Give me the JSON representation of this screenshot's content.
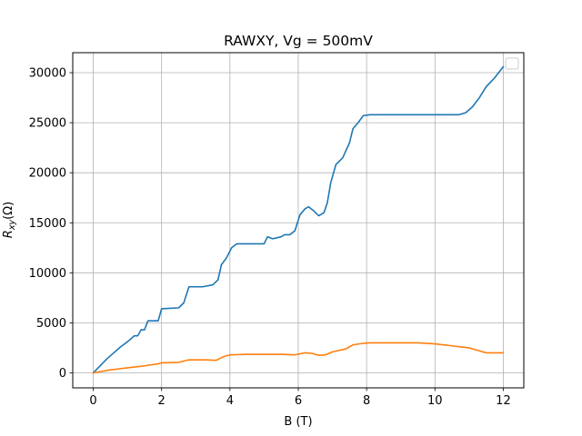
{
  "chart_data": {
    "type": "line",
    "title": "RAWXY, Vg = 500mV",
    "xlabel": "B (T)",
    "ylabel": {
      "main": "R",
      "sub": "xy",
      "unit": "(Ω)"
    },
    "xlim": [
      -0.6,
      12.6
    ],
    "ylim": [
      -1500,
      32000
    ],
    "x_ticks": [
      0,
      2,
      4,
      6,
      8,
      10,
      12
    ],
    "y_ticks": [
      0,
      5000,
      10000,
      15000,
      20000,
      25000,
      30000
    ],
    "grid": true,
    "legend": {
      "placement": "top-right",
      "entries": []
    },
    "series": [
      {
        "color": "#1f77b4",
        "points": [
          [
            0,
            0
          ],
          [
            0.2,
            700
          ],
          [
            0.4,
            1400
          ],
          [
            0.6,
            2000
          ],
          [
            0.8,
            2600
          ],
          [
            1.0,
            3100
          ],
          [
            1.2,
            3700
          ],
          [
            1.3,
            3700
          ],
          [
            1.4,
            4300
          ],
          [
            1.5,
            4300
          ],
          [
            1.6,
            5200
          ],
          [
            1.9,
            5200
          ],
          [
            2.0,
            6400
          ],
          [
            2.5,
            6500
          ],
          [
            2.65,
            7000
          ],
          [
            2.8,
            8600
          ],
          [
            3.2,
            8600
          ],
          [
            3.5,
            8800
          ],
          [
            3.65,
            9300
          ],
          [
            3.75,
            10800
          ],
          [
            3.9,
            11500
          ],
          [
            4.05,
            12500
          ],
          [
            4.2,
            12900
          ],
          [
            5.0,
            12900
          ],
          [
            5.1,
            13600
          ],
          [
            5.25,
            13400
          ],
          [
            5.5,
            13600
          ],
          [
            5.6,
            13800
          ],
          [
            5.75,
            13800
          ],
          [
            5.9,
            14200
          ],
          [
            6.05,
            15800
          ],
          [
            6.2,
            16400
          ],
          [
            6.3,
            16600
          ],
          [
            6.45,
            16200
          ],
          [
            6.6,
            15700
          ],
          [
            6.75,
            16000
          ],
          [
            6.85,
            17000
          ],
          [
            6.95,
            19000
          ],
          [
            7.1,
            20800
          ],
          [
            7.3,
            21500
          ],
          [
            7.5,
            23000
          ],
          [
            7.6,
            24400
          ],
          [
            7.75,
            25000
          ],
          [
            7.9,
            25700
          ],
          [
            8.1,
            25800
          ],
          [
            10.7,
            25800
          ],
          [
            10.9,
            26000
          ],
          [
            11.1,
            26600
          ],
          [
            11.3,
            27500
          ],
          [
            11.5,
            28600
          ],
          [
            11.75,
            29500
          ],
          [
            12.0,
            30600
          ]
        ]
      },
      {
        "color": "#ff7f0e",
        "points": [
          [
            0,
            0
          ],
          [
            0.5,
            300
          ],
          [
            1.0,
            500
          ],
          [
            1.5,
            700
          ],
          [
            1.9,
            900
          ],
          [
            2.0,
            1000
          ],
          [
            2.5,
            1050
          ],
          [
            2.8,
            1300
          ],
          [
            3.3,
            1300
          ],
          [
            3.6,
            1250
          ],
          [
            3.8,
            1600
          ],
          [
            4.0,
            1800
          ],
          [
            4.5,
            1850
          ],
          [
            5.0,
            1850
          ],
          [
            5.5,
            1850
          ],
          [
            5.9,
            1800
          ],
          [
            6.2,
            2000
          ],
          [
            6.4,
            1950
          ],
          [
            6.6,
            1750
          ],
          [
            6.8,
            1800
          ],
          [
            7.0,
            2100
          ],
          [
            7.4,
            2400
          ],
          [
            7.6,
            2800
          ],
          [
            7.9,
            2950
          ],
          [
            8.1,
            3000
          ],
          [
            9.5,
            3000
          ],
          [
            10.0,
            2900
          ],
          [
            10.5,
            2700
          ],
          [
            11.0,
            2500
          ],
          [
            11.3,
            2200
          ],
          [
            11.5,
            2000
          ],
          [
            12.0,
            2000
          ]
        ]
      }
    ]
  }
}
